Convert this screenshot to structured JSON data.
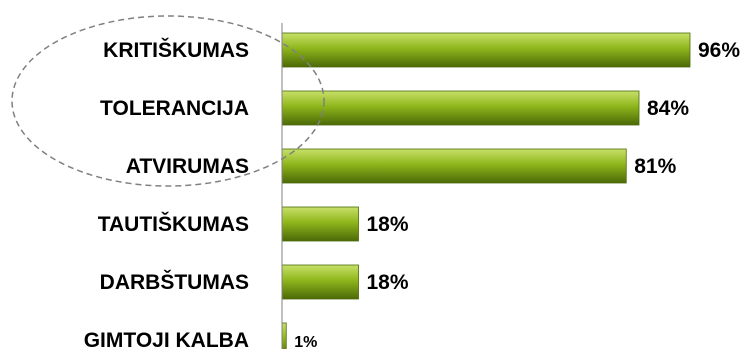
{
  "chart_data": {
    "type": "bar",
    "orientation": "horizontal",
    "categories": [
      "KRITIŠKUMAS",
      "TOLERANCIJA",
      "ATVIRUMAS",
      "TAUTIŠKUMAS",
      "DARBŠTUMAS",
      "GIMTOJI KALBA"
    ],
    "values": [
      96,
      84,
      81,
      18,
      18,
      1
    ],
    "value_labels": [
      "96%",
      "84%",
      "81%",
      "18%",
      "18%",
      "1%"
    ],
    "xlim": [
      0,
      100
    ],
    "grid": false,
    "legend": "none",
    "highlighted_categories": [
      "KRITIŠKUMAS",
      "TOLERANCIJA",
      "ATVIRUMAS"
    ],
    "colors": {
      "bar_top": "#c8e06a",
      "bar_mid": "#8fb61c",
      "bar_bottom": "#4c6a08",
      "axis": "#808080",
      "ellipse": "#808080"
    }
  }
}
